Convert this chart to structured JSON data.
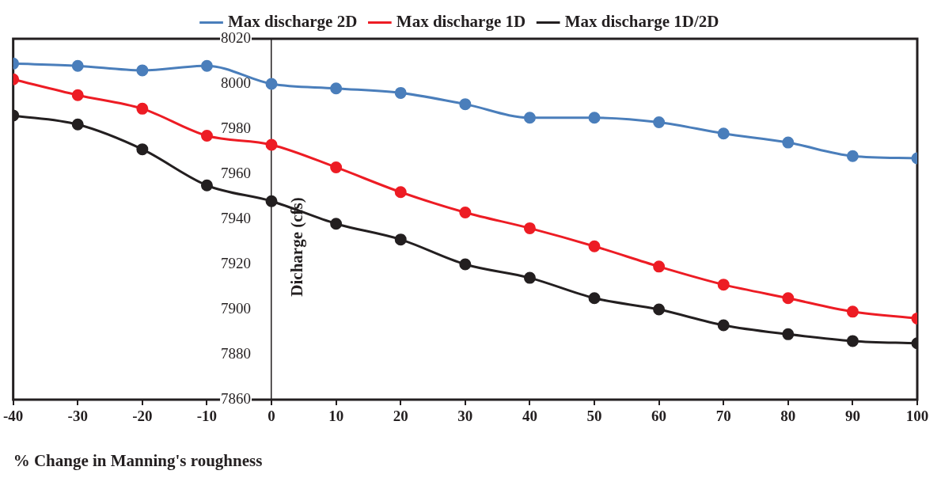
{
  "chart_data": {
    "type": "line",
    "xlabel": "% Change in Manning's roughness",
    "ylabel": "Dicharge (cfs)",
    "x": [
      -40,
      -30,
      -20,
      -10,
      0,
      10,
      20,
      30,
      40,
      50,
      60,
      70,
      80,
      90,
      100
    ],
    "series": [
      {
        "name": "Max discharge 2D",
        "color": "#4a7ebb",
        "values": [
          8009,
          8008,
          8006,
          8008,
          8000,
          7998,
          7996,
          7991,
          7985,
          7985,
          7983,
          7978,
          7974,
          7968,
          7967
        ]
      },
      {
        "name": "Max discharge 1D",
        "color": "#ed1c24",
        "values": [
          8002,
          7995,
          7989,
          7977,
          7973,
          7963,
          7952,
          7943,
          7936,
          7928,
          7919,
          7911,
          7905,
          7899,
          7896
        ]
      },
      {
        "name": "Max discharge 1D/2D",
        "color": "#231f20",
        "values": [
          7986,
          7982,
          7971,
          7955,
          7948,
          7938,
          7931,
          7920,
          7914,
          7905,
          7900,
          7893,
          7889,
          7886,
          7885
        ]
      }
    ],
    "xlim": [
      -40,
      100
    ],
    "xticks": [
      -40,
      -30,
      -20,
      -10,
      0,
      10,
      20,
      30,
      40,
      50,
      60,
      70,
      80,
      90,
      100
    ],
    "ylim": [
      7860,
      8020
    ],
    "yticks": [
      7860,
      7880,
      7900,
      7920,
      7940,
      7960,
      7980,
      8000,
      8020
    ],
    "grid": false,
    "legend": "top",
    "marker": "circle",
    "line_style": "solid"
  }
}
